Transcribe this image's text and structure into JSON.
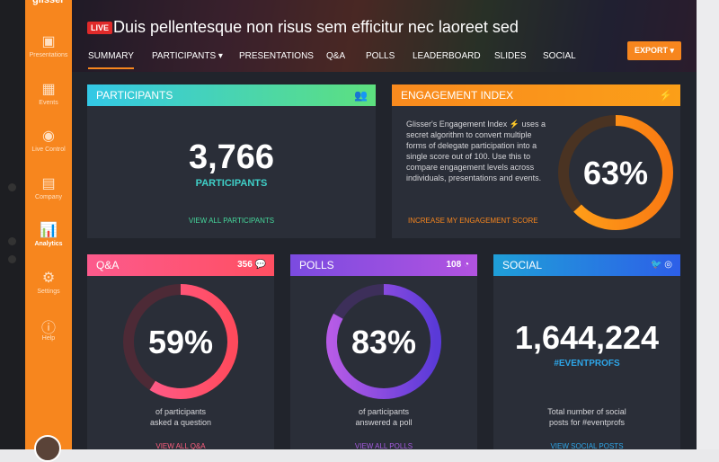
{
  "sidebar": {
    "logo": "glisser",
    "items": [
      "Presentations",
      "Events",
      "Live Control",
      "Company",
      "Analytics",
      "Settings",
      "Help"
    ],
    "active": 4
  },
  "header": {
    "live": "LIVE",
    "title": "Duis pellentesque non risus sem efficitur nec laoreet sed",
    "nav": [
      "SUMMARY",
      "PARTICIPANTS",
      "PRESENTATIONS",
      "Q&A",
      "POLLS",
      "LEADERBOARD",
      "SLIDES",
      "SOCIAL"
    ],
    "active": 0,
    "export": "EXPORT"
  },
  "cards": {
    "participants": {
      "title": "PARTICIPANTS",
      "value": "3,766",
      "label": "PARTICIPANTS",
      "link": "VIEW ALL PARTICIPANTS"
    },
    "engagement": {
      "title": "ENGAGEMENT INDEX",
      "intro": "Glisser's Engagement Index",
      "lines": [
        "uses a",
        "secret algorithm to convert multiple",
        "forms of delegate participation into a",
        "single score out of 100. Use this to",
        "compare engagement levels across",
        "individuals, presentations and events."
      ],
      "value": 63,
      "value_label": "63%",
      "link": "INCREASE MY ENGAGEMENT SCORE"
    },
    "qa": {
      "title": "Q&A",
      "count": 356,
      "value": 59,
      "value_label": "59%",
      "caption": [
        "of participants",
        "asked a question"
      ],
      "link": "VIEW ALL Q&A"
    },
    "polls": {
      "title": "POLLS",
      "count": 108,
      "value": 83,
      "value_label": "83%",
      "caption": [
        "of participants",
        "answered a poll"
      ],
      "link": "VIEW ALL POLLS"
    },
    "social": {
      "title": "SOCIAL",
      "value": "1,644,224",
      "hashtag": "#EVENTPROFS",
      "caption": [
        "Total number of social",
        "posts for #eventprofs"
      ],
      "link": "VIEW SOCIAL POSTS"
    }
  }
}
